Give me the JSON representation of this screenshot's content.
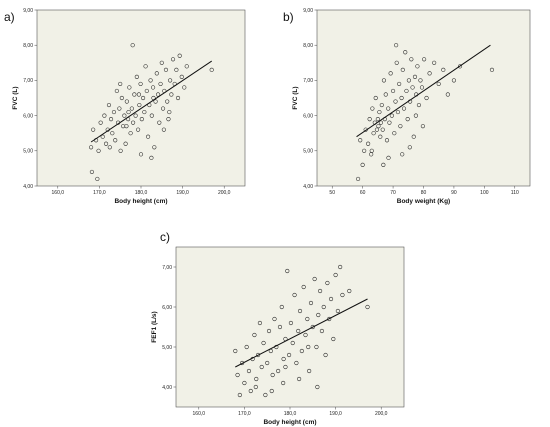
{
  "panels": {
    "a": "a)",
    "b": "b)",
    "c": "c)"
  },
  "colors": {
    "plot_background": "#f1f1e7",
    "marker_stroke": "#222222",
    "fit_line": "#111111"
  },
  "chart_data": [
    {
      "type": "scatter",
      "panel": "a)",
      "title": "",
      "xlabel": "Body height (cm)",
      "ylabel": "FVC (L)",
      "xlim": [
        155,
        205
      ],
      "ylim": [
        4.0,
        9.0
      ],
      "x_ticks": [
        "160,0",
        "170,0",
        "180,0",
        "190,0",
        "200,0"
      ],
      "y_ticks": [
        "4,00",
        "5,00",
        "6,00",
        "7,00",
        "8,00",
        "9,00"
      ],
      "grid": false,
      "marker": "open-circle",
      "fit_line": {
        "x": [
          168,
          197
        ],
        "y": [
          5.25,
          7.55
        ]
      },
      "points": [
        [
          168.2,
          4.4
        ],
        [
          169.5,
          4.2
        ],
        [
          168.0,
          5.1
        ],
        [
          168.5,
          5.6
        ],
        [
          169.2,
          5.3
        ],
        [
          169.8,
          5.0
        ],
        [
          170.3,
          5.8
        ],
        [
          170.8,
          5.4
        ],
        [
          171.2,
          6.0
        ],
        [
          171.6,
          5.2
        ],
        [
          172.0,
          5.6
        ],
        [
          172.3,
          6.3
        ],
        [
          172.8,
          5.9
        ],
        [
          173.1,
          5.5
        ],
        [
          173.5,
          6.1
        ],
        [
          173.8,
          5.3
        ],
        [
          174.2,
          6.7
        ],
        [
          174.5,
          5.8
        ],
        [
          174.8,
          6.2
        ],
        [
          175.1,
          5.0
        ],
        [
          175.4,
          6.5
        ],
        [
          175.7,
          5.7
        ],
        [
          176.0,
          6.0
        ],
        [
          176.3,
          5.2
        ],
        [
          176.6,
          6.4
        ],
        [
          176.9,
          5.9
        ],
        [
          177.2,
          6.8
        ],
        [
          177.5,
          5.5
        ],
        [
          177.8,
          6.2
        ],
        [
          178.1,
          5.8
        ],
        [
          178.4,
          6.6
        ],
        [
          178.7,
          6.0
        ],
        [
          179.0,
          7.1
        ],
        [
          179.3,
          5.6
        ],
        [
          179.6,
          6.3
        ],
        [
          179.9,
          6.9
        ],
        [
          180.2,
          5.9
        ],
        [
          180.5,
          6.5
        ],
        [
          180.8,
          6.1
        ],
        [
          181.1,
          7.4
        ],
        [
          181.4,
          6.7
        ],
        [
          181.7,
          5.4
        ],
        [
          182.0,
          6.3
        ],
        [
          182.3,
          7.0
        ],
        [
          182.6,
          6.0
        ],
        [
          182.9,
          6.8
        ],
        [
          183.2,
          5.1
        ],
        [
          183.5,
          6.4
        ],
        [
          183.8,
          7.2
        ],
        [
          184.1,
          6.6
        ],
        [
          184.4,
          5.8
        ],
        [
          184.7,
          6.9
        ],
        [
          185.0,
          7.5
        ],
        [
          185.3,
          6.2
        ],
        [
          185.6,
          6.7
        ],
        [
          186.0,
          7.3
        ],
        [
          186.3,
          6.4
        ],
        [
          186.6,
          5.9
        ],
        [
          187.0,
          7.0
        ],
        [
          187.3,
          6.6
        ],
        [
          187.7,
          7.6
        ],
        [
          188.1,
          6.9
        ],
        [
          188.5,
          7.3
        ],
        [
          188.9,
          6.5
        ],
        [
          189.3,
          7.7
        ],
        [
          189.8,
          7.1
        ],
        [
          190.4,
          6.8
        ],
        [
          191.0,
          7.4
        ],
        [
          176.5,
          5.7
        ],
        [
          178.0,
          8.0
        ],
        [
          180.0,
          4.9
        ],
        [
          182.5,
          4.8
        ],
        [
          185.5,
          5.6
        ],
        [
          172.5,
          5.1
        ],
        [
          175.0,
          6.9
        ],
        [
          177.0,
          6.1
        ],
        [
          179.5,
          6.6
        ],
        [
          183.0,
          6.5
        ],
        [
          186.8,
          6.1
        ],
        [
          197.0,
          7.3
        ]
      ]
    },
    {
      "type": "scatter",
      "panel": "b)",
      "title": "",
      "xlabel": "Body weight (Kg)",
      "ylabel": "FVC (L)",
      "xlim": [
        45,
        115
      ],
      "ylim": [
        4.0,
        9.0
      ],
      "x_ticks": [
        "50",
        "60",
        "70",
        "80",
        "90",
        "100",
        "110"
      ],
      "y_ticks": [
        "4,00",
        "5,00",
        "6,00",
        "7,00",
        "8,00",
        "9,00"
      ],
      "grid": false,
      "marker": "open-circle",
      "fit_line": {
        "x": [
          58,
          102
        ],
        "y": [
          5.4,
          8.0
        ]
      },
      "points": [
        [
          58.5,
          4.2
        ],
        [
          60.0,
          4.6
        ],
        [
          59.2,
          5.3
        ],
        [
          60.5,
          5.0
        ],
        [
          61.0,
          5.6
        ],
        [
          61.8,
          5.2
        ],
        [
          62.3,
          5.9
        ],
        [
          62.8,
          4.9
        ],
        [
          63.2,
          6.2
        ],
        [
          63.6,
          5.5
        ],
        [
          64.0,
          5.8
        ],
        [
          64.3,
          6.5
        ],
        [
          64.7,
          5.6
        ],
        [
          65.0,
          5.9
        ],
        [
          65.2,
          5.7
        ],
        [
          65.5,
          6.1
        ],
        [
          65.8,
          5.4
        ],
        [
          66.0,
          5.8
        ],
        [
          66.3,
          6.3
        ],
        [
          66.6,
          5.6
        ],
        [
          67.0,
          7.0
        ],
        [
          67.3,
          5.9
        ],
        [
          67.6,
          6.6
        ],
        [
          68.0,
          5.3
        ],
        [
          68.4,
          6.2
        ],
        [
          68.8,
          5.8
        ],
        [
          69.2,
          7.2
        ],
        [
          69.6,
          6.0
        ],
        [
          70.0,
          6.7
        ],
        [
          70.4,
          5.5
        ],
        [
          70.8,
          6.4
        ],
        [
          71.2,
          7.5
        ],
        [
          71.6,
          6.1
        ],
        [
          72.0,
          6.9
        ],
        [
          72.4,
          5.7
        ],
        [
          72.8,
          6.5
        ],
        [
          73.2,
          7.3
        ],
        [
          73.6,
          6.2
        ],
        [
          74.0,
          7.8
        ],
        [
          74.4,
          6.7
        ],
        [
          74.8,
          5.9
        ],
        [
          75.2,
          7.0
        ],
        [
          75.6,
          6.4
        ],
        [
          76.0,
          7.6
        ],
        [
          76.4,
          6.8
        ],
        [
          76.8,
          5.4
        ],
        [
          77.2,
          7.1
        ],
        [
          77.6,
          6.6
        ],
        [
          78.0,
          7.4
        ],
        [
          78.5,
          6.3
        ],
        [
          79.0,
          7.0
        ],
        [
          79.5,
          6.8
        ],
        [
          80.2,
          7.6
        ],
        [
          81.0,
          6.5
        ],
        [
          82.0,
          7.2
        ],
        [
          83.5,
          7.5
        ],
        [
          85.0,
          6.9
        ],
        [
          86.5,
          7.3
        ],
        [
          88.0,
          6.6
        ],
        [
          90.0,
          7.0
        ],
        [
          92.0,
          7.4
        ],
        [
          71.0,
          8.0
        ],
        [
          73.0,
          4.9
        ],
        [
          75.5,
          5.1
        ],
        [
          68.5,
          4.8
        ],
        [
          63.0,
          5.0
        ],
        [
          66.8,
          4.6
        ],
        [
          77.5,
          6.0
        ],
        [
          79.8,
          5.7
        ],
        [
          102.5,
          7.3
        ]
      ]
    },
    {
      "type": "scatter",
      "panel": "c)",
      "title": "",
      "xlabel": "Body height (cm)",
      "ylabel": "FEF1 (L/s)",
      "xlim": [
        155,
        205
      ],
      "ylim": [
        3.5,
        7.5
      ],
      "x_ticks": [
        "160,0",
        "170,0",
        "180,0",
        "190,0",
        "200,0"
      ],
      "y_ticks": [
        "4,00",
        "5,00",
        "6,00",
        "7,00"
      ],
      "grid": false,
      "marker": "open-circle",
      "fit_line": {
        "x": [
          168,
          197
        ],
        "y": [
          4.5,
          6.2
        ]
      },
      "points": [
        [
          168.0,
          4.9
        ],
        [
          168.5,
          4.3
        ],
        [
          169.0,
          3.8
        ],
        [
          169.5,
          4.6
        ],
        [
          170.0,
          4.1
        ],
        [
          170.5,
          5.0
        ],
        [
          171.0,
          4.4
        ],
        [
          171.4,
          3.9
        ],
        [
          171.8,
          4.7
        ],
        [
          172.2,
          5.3
        ],
        [
          172.6,
          4.2
        ],
        [
          173.0,
          4.8
        ],
        [
          173.4,
          5.6
        ],
        [
          173.8,
          4.5
        ],
        [
          174.2,
          5.1
        ],
        [
          174.6,
          3.8
        ],
        [
          175.0,
          4.6
        ],
        [
          175.4,
          5.4
        ],
        [
          175.8,
          4.9
        ],
        [
          176.2,
          4.3
        ],
        [
          176.6,
          5.7
        ],
        [
          177.0,
          5.0
        ],
        [
          177.4,
          4.4
        ],
        [
          177.8,
          5.5
        ],
        [
          178.2,
          6.0
        ],
        [
          178.6,
          4.7
        ],
        [
          179.0,
          5.2
        ],
        [
          179.4,
          6.9
        ],
        [
          179.8,
          4.8
        ],
        [
          180.2,
          5.6
        ],
        [
          180.6,
          5.1
        ],
        [
          181.0,
          6.3
        ],
        [
          181.4,
          4.6
        ],
        [
          181.8,
          5.4
        ],
        [
          182.2,
          5.9
        ],
        [
          182.6,
          4.9
        ],
        [
          183.0,
          6.5
        ],
        [
          183.4,
          5.3
        ],
        [
          183.8,
          5.7
        ],
        [
          184.2,
          4.4
        ],
        [
          184.6,
          6.1
        ],
        [
          185.0,
          5.5
        ],
        [
          185.4,
          6.7
        ],
        [
          185.8,
          5.0
        ],
        [
          186.2,
          5.8
        ],
        [
          186.6,
          6.4
        ],
        [
          187.0,
          5.4
        ],
        [
          187.4,
          6.0
        ],
        [
          187.8,
          4.8
        ],
        [
          188.2,
          6.6
        ],
        [
          188.6,
          5.7
        ],
        [
          189.0,
          6.2
        ],
        [
          189.5,
          5.2
        ],
        [
          190.0,
          6.8
        ],
        [
          190.5,
          5.9
        ],
        [
          191.0,
          7.0
        ],
        [
          191.5,
          6.3
        ],
        [
          176.0,
          3.9
        ],
        [
          178.5,
          4.1
        ],
        [
          182.0,
          4.2
        ],
        [
          186.0,
          4.0
        ],
        [
          172.5,
          4.0
        ],
        [
          179.0,
          4.5
        ],
        [
          184.0,
          5.0
        ],
        [
          193.0,
          6.4
        ],
        [
          197.0,
          6.0
        ]
      ]
    }
  ]
}
